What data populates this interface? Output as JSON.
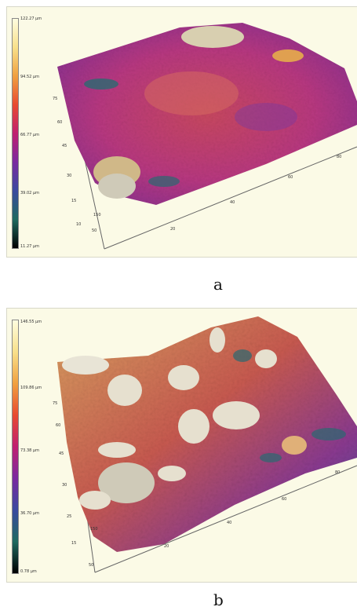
{
  "panels": [
    {
      "id": "a",
      "colorbar": {
        "gradient": [
          "#fffde0",
          "#f8e08a",
          "#f0a040",
          "#e84a30",
          "#c02070",
          "#7a2aa0",
          "#3a4aa0",
          "#1f6a60",
          "#000000"
        ],
        "ticks": [
          "122.27 µm",
          "94.52 µm",
          "66.77 µm",
          "39.02 µm",
          "11.27 µm"
        ]
      },
      "axis_ticks": [
        "75",
        "60",
        "45",
        "30",
        "15",
        "10",
        "50",
        "150",
        "20",
        "40",
        "60",
        "80"
      ],
      "caption": "a"
    },
    {
      "id": "b",
      "colorbar": {
        "gradient": [
          "#fffde0",
          "#f8e08a",
          "#f0a040",
          "#e84a30",
          "#c02070",
          "#7a2aa0",
          "#3a4aa0",
          "#1f6a60",
          "#000000"
        ],
        "ticks": [
          "146.55 µm",
          "109.86 µm",
          "73.38 µm",
          "36.70 µm",
          "0.78 µm"
        ]
      },
      "axis_ticks": [
        "75",
        "60",
        "45",
        "30",
        "25",
        "15",
        "150",
        "50",
        "20",
        "40",
        "60",
        "80"
      ],
      "caption": "b"
    }
  ]
}
